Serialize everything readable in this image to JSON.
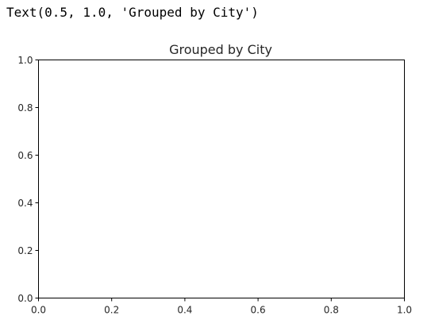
{
  "output": {
    "repr": "Text(0.5, 1.0, 'Grouped by City')"
  },
  "chart_data": {
    "type": "bar",
    "title": "Grouped by City",
    "xlabel": "",
    "ylabel": "",
    "xlim": [
      0.0,
      1.0
    ],
    "ylim": [
      0.0,
      1.0
    ],
    "xticks": [
      "0.0",
      "0.2",
      "0.4",
      "0.6",
      "0.8",
      "1.0"
    ],
    "yticks": [
      "0.0",
      "0.2",
      "0.4",
      "0.6",
      "0.8",
      "1.0"
    ],
    "series": [],
    "grid": false,
    "colors": {
      "axes": "#000000",
      "text": "#262626",
      "background": "#ffffff"
    }
  }
}
